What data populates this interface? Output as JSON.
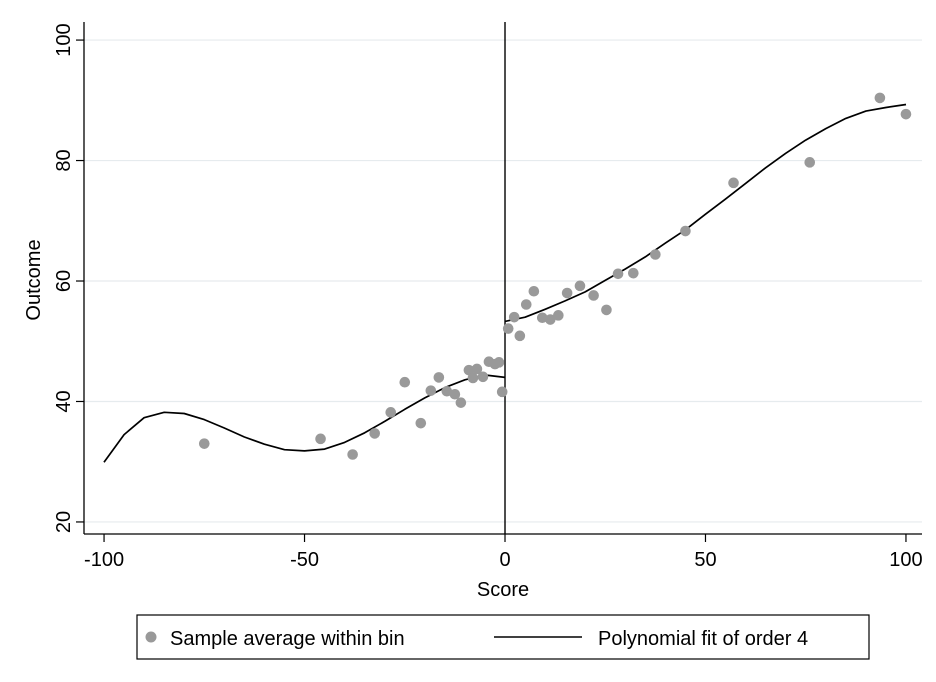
{
  "chart_data": {
    "type": "scatter",
    "xlabel": "Score",
    "ylabel": "Outcome",
    "xlim": [
      -105,
      104
    ],
    "ylim": [
      18,
      103
    ],
    "xticks": [
      -100,
      -50,
      0,
      50,
      100
    ],
    "xtick_labels": [
      "-100",
      "-50",
      "0",
      "50",
      "100"
    ],
    "yticks": [
      20,
      40,
      60,
      80,
      100
    ],
    "ytick_labels": [
      "20",
      "40",
      "60",
      "80",
      "100"
    ],
    "grid": true,
    "cutoff": 0,
    "series": [
      {
        "name": "Sample average within bin",
        "kind": "scatter",
        "color": "#999999",
        "points": [
          [
            -75,
            33
          ],
          [
            -46,
            33.8
          ],
          [
            -38,
            31.2
          ],
          [
            -32.5,
            34.7
          ],
          [
            -28.5,
            38.2
          ],
          [
            -25,
            43.2
          ],
          [
            -21,
            36.4
          ],
          [
            -18.5,
            41.8
          ],
          [
            -16.5,
            44
          ],
          [
            -14.5,
            41.7
          ],
          [
            -12.5,
            41.2
          ],
          [
            -11,
            39.8
          ],
          [
            -9,
            45.2
          ],
          [
            -8,
            43.9
          ],
          [
            -7,
            45.4
          ],
          [
            -5.5,
            44.1
          ],
          [
            -4,
            46.6
          ],
          [
            -2.5,
            46.2
          ],
          [
            -1.5,
            46.5
          ],
          [
            -0.7,
            41.6
          ],
          [
            0.8,
            52.1
          ],
          [
            2.3,
            54
          ],
          [
            3.7,
            50.9
          ],
          [
            5.3,
            56.1
          ],
          [
            7.2,
            58.3
          ],
          [
            9.3,
            53.9
          ],
          [
            11.3,
            53.6
          ],
          [
            13.3,
            54.3
          ],
          [
            15.5,
            58
          ],
          [
            18.7,
            59.2
          ],
          [
            22.1,
            57.6
          ],
          [
            25.3,
            55.2
          ],
          [
            28.2,
            61.2
          ],
          [
            32,
            61.3
          ],
          [
            37.5,
            64.4
          ],
          [
            45,
            68.3
          ],
          [
            57,
            76.3
          ],
          [
            76,
            79.7
          ],
          [
            93.5,
            90.4
          ],
          [
            100,
            87.7
          ]
        ]
      },
      {
        "name": "Polynomial fit of order 4",
        "kind": "line",
        "color": "#000000",
        "segments": [
          [
            [
              -100,
              29.9
            ],
            [
              -95,
              34.5
            ],
            [
              -90,
              37.3
            ],
            [
              -85,
              38.2
            ],
            [
              -80,
              38
            ],
            [
              -75,
              37
            ],
            [
              -70,
              35.6
            ],
            [
              -65,
              34.1
            ],
            [
              -60,
              32.9
            ],
            [
              -55,
              32
            ],
            [
              -50,
              31.8
            ],
            [
              -45,
              32.1
            ],
            [
              -40,
              33.2
            ],
            [
              -35,
              34.8
            ],
            [
              -30,
              36.7
            ],
            [
              -25,
              38.7
            ],
            [
              -20,
              40.6
            ],
            [
              -15,
              42.3
            ],
            [
              -10,
              43.6
            ],
            [
              -5,
              44.4
            ],
            [
              0,
              44
            ]
          ],
          [
            [
              0,
              53.3
            ],
            [
              5,
              54
            ],
            [
              10,
              55.3
            ],
            [
              15,
              56.7
            ],
            [
              20,
              58.2
            ],
            [
              25,
              60.1
            ],
            [
              30,
              62
            ],
            [
              35,
              64
            ],
            [
              40,
              66.3
            ],
            [
              45,
              68.5
            ],
            [
              50,
              71.1
            ],
            [
              55,
              73.6
            ],
            [
              60,
              76.2
            ],
            [
              65,
              78.8
            ],
            [
              70,
              81.2
            ],
            [
              75,
              83.4
            ],
            [
              80,
              85.3
            ],
            [
              85,
              87
            ],
            [
              90,
              88.2
            ],
            [
              95,
              88.8
            ],
            [
              100,
              89.3
            ]
          ]
        ]
      }
    ],
    "legend": {
      "placement": "bottom",
      "entries": [
        "Sample average within bin",
        "Polynomial fit of order 4"
      ]
    }
  }
}
